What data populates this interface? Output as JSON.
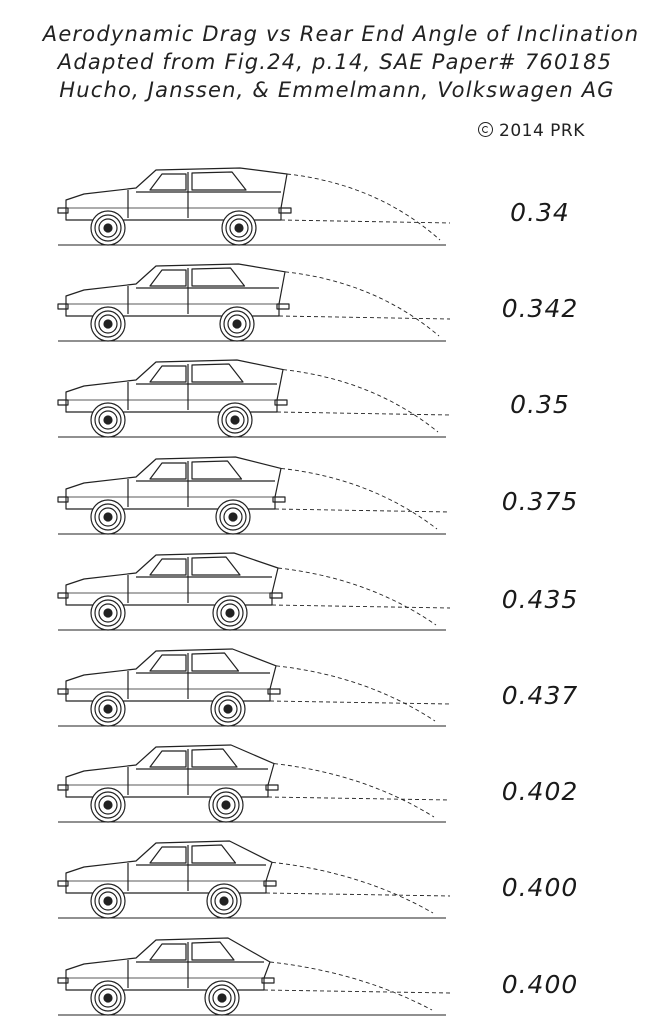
{
  "header": {
    "line1": "Aerodynamic Drag vs Rear End Angle of Inclination",
    "line2": "Adapted from Fig.24, p.14, SAE Paper# 760185",
    "line3": "Hucho, Janssen, & Emmelmann, Volkswagen AG",
    "copyright": "2014 PRK"
  },
  "chart_data": {
    "type": "table",
    "values": [
      "0.34",
      "0.342",
      "0.35",
      "0.375",
      "0.435",
      "0.437",
      "0.402",
      "0.400",
      "0.400"
    ]
  }
}
